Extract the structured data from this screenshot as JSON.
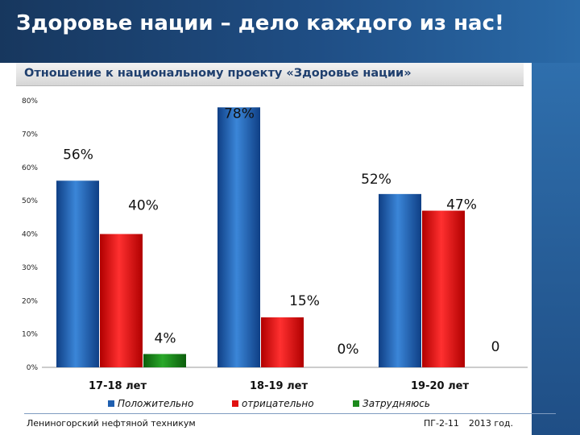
{
  "header": {
    "title": "Здоровье нации – дело каждого из нас!"
  },
  "chart_data": {
    "type": "bar",
    "title": "Отношение к национальному проекту «Здоровье нации»",
    "categories": [
      "17-18 лет",
      "18-19 лет",
      "19-20 лет"
    ],
    "series": [
      {
        "name": "Положительно",
        "values": [
          56,
          78,
          52
        ],
        "labels": [
          "56%",
          "78%",
          "52%"
        ],
        "color": "#1f5fb0"
      },
      {
        "name": "отрицательно",
        "values": [
          40,
          15,
          47
        ],
        "labels": [
          "40%",
          "15%",
          "47%"
        ],
        "color": "#e01010"
      },
      {
        "name": "Затрудняюсь",
        "values": [
          4,
          0,
          0
        ],
        "labels": [
          "4%",
          "0%",
          "0"
        ],
        "color": "#1c8a1c"
      }
    ],
    "yticks": [
      "0%",
      "10%",
      "20%",
      "30%",
      "40%",
      "50%",
      "60%",
      "70%",
      "80%"
    ],
    "ylim": [
      0,
      80
    ],
    "grid": false,
    "legend": "bottom"
  },
  "footer": {
    "left": "Лениногорский нефтяной техникум",
    "group": "ПГ-2-11",
    "year": "2013 год."
  }
}
